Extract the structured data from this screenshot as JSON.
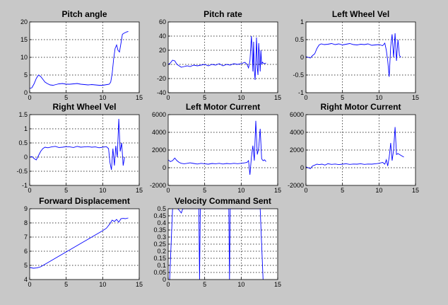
{
  "chart_data": [
    {
      "type": "line",
      "title": "Pitch angle",
      "xlim": [
        0,
        15
      ],
      "ylim": [
        0,
        20
      ],
      "xticks": [
        "0",
        "5",
        "10",
        "15"
      ],
      "yticks": [
        "0",
        "5",
        "10",
        "15",
        "20"
      ],
      "grid": true,
      "color": "#0000ff",
      "x": [
        0,
        0.3,
        0.6,
        0.9,
        1.2,
        1.5,
        1.8,
        2.1,
        2.4,
        2.8,
        3.2,
        3.6,
        4.0,
        4.5,
        5.0,
        5.5,
        6.0,
        6.5,
        7.0,
        7.5,
        8.0,
        8.5,
        9.0,
        9.5,
        10.0,
        10.3,
        10.6,
        10.9,
        11.1,
        11.3,
        11.5,
        11.7,
        11.9,
        12.1,
        12.3,
        12.5,
        12.7,
        12.9,
        13.1,
        13.3,
        13.5
      ],
      "y": [
        1.2,
        1.4,
        2.5,
        4.0,
        5.0,
        4.6,
        3.8,
        3.0,
        2.6,
        2.2,
        2.1,
        2.3,
        2.5,
        2.6,
        2.4,
        2.4,
        2.5,
        2.6,
        2.4,
        2.3,
        2.2,
        2.3,
        2.2,
        2.1,
        2.1,
        2.2,
        2.3,
        2.4,
        3.0,
        5.5,
        9.5,
        12.5,
        13.5,
        12.0,
        11.5,
        14.0,
        16.5,
        16.8,
        17.0,
        17.2,
        17.3
      ]
    },
    {
      "type": "line",
      "title": "Pitch rate",
      "xlim": [
        0,
        15
      ],
      "ylim": [
        -40,
        60
      ],
      "xticks": [
        "0",
        "5",
        "10",
        "15"
      ],
      "yticks": [
        "-40",
        "-20",
        "0",
        "20",
        "40",
        "60"
      ],
      "grid": true,
      "color": "#0000ff",
      "x": [
        0,
        0.3,
        0.6,
        0.9,
        1.2,
        1.5,
        1.8,
        2.2,
        2.6,
        3.0,
        3.5,
        4.0,
        4.5,
        5.0,
        5.5,
        6.0,
        6.5,
        7.0,
        7.5,
        8.0,
        8.5,
        9.0,
        9.5,
        10.0,
        10.5,
        10.8,
        11.0,
        11.2,
        11.4,
        11.5,
        11.6,
        11.7,
        11.8,
        11.9,
        12.0,
        12.1,
        12.2,
        12.3,
        12.4,
        12.5,
        12.6,
        12.7,
        12.8,
        12.9,
        13.0,
        13.2,
        13.4
      ],
      "y": [
        0,
        2,
        6,
        5,
        0,
        -2,
        -4,
        -3,
        -2,
        -3,
        -1,
        -2,
        -1,
        0,
        -2,
        0,
        -1,
        1,
        -2,
        0,
        -1,
        1,
        0,
        1,
        3,
        0,
        -5,
        5,
        40,
        20,
        -10,
        32,
        -8,
        -22,
        5,
        38,
        -5,
        -15,
        30,
        10,
        -10,
        20,
        0,
        3,
        2,
        1,
        2
      ]
    },
    {
      "type": "line",
      "title": "Left Wheel Vel",
      "xlim": [
        0,
        15
      ],
      "ylim": [
        -1,
        1
      ],
      "xticks": [
        "0",
        "5",
        "10",
        "15"
      ],
      "yticks": [
        "-1",
        "-0.5",
        "0",
        "0.5",
        "1"
      ],
      "grid": true,
      "color": "#0000ff",
      "x": [
        0,
        0.3,
        0.6,
        0.9,
        1.2,
        1.5,
        1.8,
        2.1,
        2.5,
        3.0,
        3.5,
        4.0,
        4.5,
        5.0,
        5.5,
        6.0,
        6.5,
        7.0,
        7.5,
        8.0,
        8.5,
        9.0,
        9.5,
        10.0,
        10.5,
        10.8,
        11.0,
        11.2,
        11.4,
        11.6,
        11.8,
        12.0,
        12.2,
        12.4,
        12.6,
        12.8,
        13.0
      ],
      "y": [
        0.02,
        0.0,
        -0.02,
        0.05,
        0.1,
        0.25,
        0.35,
        0.38,
        0.36,
        0.37,
        0.39,
        0.36,
        0.38,
        0.35,
        0.37,
        0.39,
        0.36,
        0.35,
        0.37,
        0.36,
        0.38,
        0.34,
        0.35,
        0.36,
        0.33,
        0.4,
        0.2,
        -0.1,
        -0.55,
        0.3,
        0.65,
        0.0,
        0.68,
        -0.1,
        0.5,
        0.05,
        0.0
      ]
    },
    {
      "type": "line",
      "title": "Right Wheel Vel",
      "xlim": [
        0,
        15
      ],
      "ylim": [
        -1,
        1.5
      ],
      "xticks": [
        "0",
        "5",
        "10",
        "15"
      ],
      "yticks": [
        "-1",
        "-0.5",
        "0",
        "0.5",
        "1",
        "1.5"
      ],
      "grid": true,
      "color": "#0000ff",
      "x": [
        0,
        0.3,
        0.6,
        0.9,
        1.2,
        1.5,
        1.8,
        2.1,
        2.5,
        3.0,
        3.5,
        4.0,
        4.5,
        5.0,
        5.5,
        6.0,
        6.5,
        7.0,
        7.5,
        8.0,
        8.5,
        9.0,
        9.5,
        10.0,
        10.5,
        10.8,
        11.0,
        11.2,
        11.4,
        11.6,
        11.8,
        12.0,
        12.2,
        12.4,
        12.6,
        12.8,
        13.0
      ],
      "y": [
        0.0,
        0.02,
        -0.05,
        -0.1,
        0.05,
        0.2,
        0.3,
        0.35,
        0.33,
        0.36,
        0.38,
        0.34,
        0.35,
        0.37,
        0.36,
        0.34,
        0.38,
        0.35,
        0.36,
        0.37,
        0.35,
        0.36,
        0.33,
        0.35,
        0.37,
        0.3,
        -0.2,
        -0.45,
        0.3,
        -0.3,
        0.4,
        0.0,
        1.35,
        0.2,
        0.5,
        -0.3,
        0.0
      ]
    },
    {
      "type": "line",
      "title": "Left Motor Current",
      "xlim": [
        0,
        15
      ],
      "ylim": [
        -2000,
        6000
      ],
      "xticks": [
        "0",
        "5",
        "10",
        "15"
      ],
      "yticks": [
        "-2000",
        "0",
        "2000",
        "4000",
        "6000"
      ],
      "grid": true,
      "color": "#0000ff",
      "x": [
        0,
        0.3,
        0.6,
        0.9,
        1.2,
        1.5,
        1.8,
        2.2,
        2.6,
        3.0,
        3.5,
        4.0,
        4.5,
        5.0,
        5.5,
        6.0,
        6.5,
        7.0,
        7.5,
        8.0,
        8.5,
        9.0,
        9.5,
        10.0,
        10.5,
        10.8,
        11.0,
        11.2,
        11.4,
        11.6,
        11.8,
        12.0,
        12.2,
        12.4,
        12.6,
        12.8,
        13.0,
        13.2,
        13.4
      ],
      "y": [
        900,
        700,
        800,
        1100,
        800,
        600,
        500,
        450,
        500,
        550,
        480,
        420,
        500,
        450,
        400,
        480,
        450,
        500,
        420,
        480,
        450,
        500,
        460,
        500,
        550,
        600,
        800,
        -800,
        1200,
        2500,
        800,
        5300,
        1500,
        2200,
        4400,
        1000,
        800,
        900,
        700
      ]
    },
    {
      "type": "line",
      "title": "Right Motor Current",
      "xlim": [
        0,
        15
      ],
      "ylim": [
        -2000,
        6000
      ],
      "xticks": [
        "0",
        "5",
        "10",
        "15"
      ],
      "yticks": [
        "-2000",
        "0",
        "2000",
        "4000",
        "6000"
      ],
      "grid": true,
      "color": "#0000ff",
      "x": [
        0,
        0.3,
        0.6,
        0.9,
        1.2,
        1.5,
        1.8,
        2.2,
        2.6,
        3.0,
        3.5,
        4.0,
        4.5,
        5.0,
        5.5,
        6.0,
        6.5,
        7.0,
        7.5,
        8.0,
        8.5,
        9.0,
        9.5,
        10.0,
        10.5,
        10.8,
        11.0,
        11.2,
        11.4,
        11.6,
        11.8,
        12.0,
        12.2,
        12.4,
        12.6,
        12.8,
        13.0,
        13.2,
        13.4
      ],
      "y": [
        100,
        0,
        -100,
        200,
        300,
        400,
        350,
        400,
        300,
        450,
        380,
        420,
        350,
        400,
        450,
        380,
        420,
        400,
        450,
        380,
        420,
        400,
        450,
        500,
        600,
        400,
        900,
        200,
        1200,
        2800,
        800,
        2000,
        4600,
        1500,
        1600,
        1500,
        1400,
        1300,
        1200
      ]
    },
    {
      "type": "line",
      "title": "Forward Displacement",
      "xlim": [
        0,
        15
      ],
      "ylim": [
        4,
        9
      ],
      "xticks": [
        "0",
        "5",
        "10",
        "15"
      ],
      "yticks": [
        "4",
        "5",
        "6",
        "7",
        "8",
        "9"
      ],
      "grid": true,
      "color": "#0000ff",
      "x": [
        0,
        0.5,
        1.0,
        1.5,
        2.0,
        3.0,
        4.0,
        5.0,
        6.0,
        7.0,
        8.0,
        9.0,
        10.0,
        10.5,
        11.0,
        11.3,
        11.6,
        11.9,
        12.2,
        12.5,
        12.8,
        13.1,
        13.5
      ],
      "y": [
        4.85,
        4.8,
        4.82,
        4.9,
        5.05,
        5.35,
        5.65,
        5.95,
        6.25,
        6.55,
        6.85,
        7.15,
        7.45,
        7.62,
        7.95,
        8.2,
        8.1,
        8.25,
        8.05,
        8.3,
        8.32,
        8.3,
        8.35
      ]
    },
    {
      "type": "line",
      "title": "Velocity Command Sent",
      "xlim": [
        0,
        15
      ],
      "ylim": [
        0,
        0.5
      ],
      "xticks": [
        "0",
        "5",
        "10",
        "15"
      ],
      "yticks": [
        "0",
        "0.05",
        "0.1",
        "0.15",
        "0.2",
        "0.25",
        "0.3",
        "0.35",
        "0.4",
        "0.45",
        "0.5"
      ],
      "grid": true,
      "color": "#0000ff",
      "x": [
        0.2,
        0.6,
        1.0,
        1.5,
        1.8,
        2.0,
        2.3,
        2.6,
        3.0,
        4.0,
        4.2,
        4.3,
        4.4,
        4.5,
        5.0,
        6.0,
        8.0,
        8.3,
        8.4,
        8.5,
        8.6,
        9.0,
        11.0,
        12.0,
        12.6,
        13.0
      ],
      "y": [
        0.0,
        0.5,
        0.52,
        0.49,
        0.47,
        0.5,
        0.5,
        0.5,
        0.5,
        0.5,
        0.5,
        0.0,
        0.5,
        0.5,
        0.5,
        0.5,
        0.5,
        0.5,
        0.0,
        0.5,
        0.5,
        0.5,
        0.5,
        0.5,
        0.5,
        0.0
      ]
    }
  ]
}
